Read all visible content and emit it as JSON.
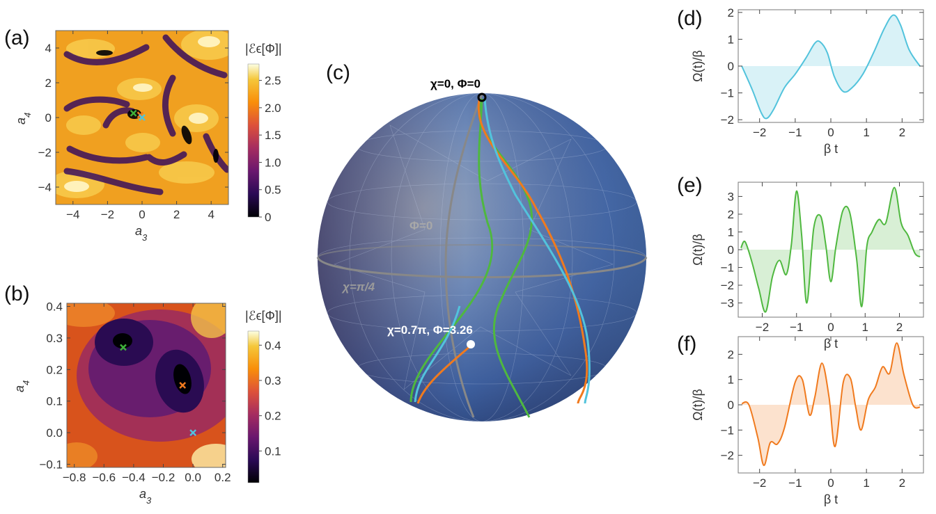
{
  "panels": {
    "a": "(a)",
    "b": "(b)",
    "c": "(c)",
    "d": "(d)",
    "e": "(e)",
    "f": "(f)"
  },
  "chart_data": [
    {
      "id": "a",
      "type": "heatmap",
      "xlabel": "a3",
      "ylabel": "a4",
      "xlim": [
        -5,
        5
      ],
      "ylim": [
        -5,
        5
      ],
      "xticks": [
        -4,
        -2,
        0,
        2,
        4
      ],
      "yticks": [
        -4,
        -2,
        0,
        2,
        4
      ],
      "colorbar": {
        "label": "|ℰϵ[Φ]|",
        "range": [
          0,
          2.8
        ],
        "ticks": [
          0,
          0.5,
          1.0,
          1.5,
          2.0,
          2.5
        ],
        "tick_labels": [
          "0",
          "0.5",
          "1.0",
          "1.5",
          "2.0",
          "2.5"
        ]
      },
      "markers": [
        {
          "x": -0.5,
          "y": 0.25,
          "color": "#3fb23a"
        },
        {
          "x": -0.1,
          "y": 0.15,
          "color": "#f07a1e"
        },
        {
          "x": 0.0,
          "y": 0.0,
          "color": "#52c3dc"
        }
      ]
    },
    {
      "id": "b",
      "type": "heatmap",
      "xlabel": "a3",
      "ylabel": "a4",
      "xlim": [
        -0.85,
        0.22
      ],
      "ylim": [
        -0.11,
        0.41
      ],
      "xticks": [
        -0.8,
        -0.6,
        -0.4,
        -0.2,
        0.0,
        0.2
      ],
      "xtick_labels": [
        "-0.8",
        "-0.6",
        "-0.4",
        "-0.2",
        "0.0",
        "0.2"
      ],
      "yticks": [
        -0.1,
        0.0,
        0.1,
        0.2,
        0.3,
        0.4
      ],
      "ytick_labels": [
        "-0.1",
        "0.0",
        "0.1",
        "0.2",
        "0.3",
        "0.4"
      ],
      "colorbar": {
        "label": "|ℰϵ[Φ]|",
        "range": [
          0.01,
          0.44
        ],
        "ticks": [
          0.1,
          0.2,
          0.3,
          0.4
        ],
        "tick_labels": [
          "0.1",
          "0.2",
          "0.3",
          "0.4"
        ]
      },
      "markers": [
        {
          "x": -0.47,
          "y": 0.27,
          "color": "#3fb23a"
        },
        {
          "x": -0.07,
          "y": 0.15,
          "color": "#f07a1e"
        },
        {
          "x": 0.0,
          "y": 0.0,
          "color": "#52c3dc"
        }
      ]
    },
    {
      "id": "c",
      "type": "other",
      "annotations": {
        "north": "χ=0, Φ=0",
        "meridian": "Φ=0",
        "equator": "χ=π/4",
        "target": "χ=0.7π, Φ=3.26"
      },
      "trajectory_colors": [
        "#3fb23a",
        "#f07a1e",
        "#52c3dc"
      ]
    },
    {
      "id": "d",
      "type": "area",
      "xlabel": "β t",
      "ylabel": "Ω(t)/β",
      "xlim": [
        -2.6,
        2.6
      ],
      "ylim": [
        -2.1,
        2.1
      ],
      "xticks": [
        -2,
        -1,
        0,
        1,
        2
      ],
      "yticks": [
        -2,
        -1,
        0,
        1,
        2
      ],
      "color": "#52c3dc",
      "x": [
        -2.5,
        -2.2,
        -1.95,
        -1.8,
        -1.6,
        -1.3,
        -1.0,
        -0.7,
        -0.45,
        -0.3,
        -0.1,
        0.1,
        0.35,
        0.6,
        0.9,
        1.2,
        1.5,
        1.75,
        1.95,
        2.2,
        2.5
      ],
      "y": [
        0.0,
        -0.9,
        -1.75,
        -1.95,
        -1.6,
        -0.8,
        -0.3,
        0.3,
        0.85,
        0.9,
        0.5,
        -0.4,
        -0.95,
        -0.8,
        -0.3,
        0.5,
        1.4,
        1.9,
        1.55,
        0.6,
        0.0
      ]
    },
    {
      "id": "e",
      "type": "area",
      "xlabel": "β t",
      "ylabel": "Ω(t)/β",
      "xlim": [
        -2.7,
        2.7
      ],
      "ylim": [
        -3.8,
        3.8
      ],
      "xticks": [
        -2,
        -1,
        0,
        1,
        2
      ],
      "yticks": [
        -3,
        -2,
        -1,
        0,
        1,
        2,
        3
      ],
      "color": "#4fb83f",
      "x": [
        -2.62,
        -2.5,
        -2.3,
        -2.1,
        -1.9,
        -1.7,
        -1.5,
        -1.3,
        -1.15,
        -1.0,
        -0.85,
        -0.7,
        -0.5,
        -0.3,
        -0.15,
        0.0,
        0.15,
        0.35,
        0.55,
        0.75,
        0.9,
        1.05,
        1.2,
        1.4,
        1.6,
        1.85,
        2.05,
        2.25,
        2.45,
        2.6
      ],
      "y": [
        0.1,
        0.45,
        -0.7,
        -2.2,
        -3.5,
        -1.5,
        -0.6,
        -1.4,
        0.3,
        3.3,
        0.8,
        -3.0,
        1.2,
        1.9,
        0.3,
        -1.8,
        0.2,
        2.2,
        2.1,
        -0.5,
        -3.2,
        0.2,
        1.0,
        1.7,
        1.5,
        3.5,
        1.5,
        0.8,
        -0.2,
        -0.4
      ]
    },
    {
      "id": "f",
      "type": "area",
      "xlabel": "β t",
      "ylabel": "Ω(t)/β",
      "xlim": [
        -2.6,
        2.6
      ],
      "ylim": [
        -2.7,
        2.7
      ],
      "xticks": [
        -2,
        -1,
        0,
        1,
        2
      ],
      "yticks": [
        -2,
        -1,
        0,
        1,
        2
      ],
      "color": "#f07a1e",
      "x": [
        -2.5,
        -2.3,
        -2.05,
        -1.88,
        -1.7,
        -1.5,
        -1.3,
        -1.0,
        -0.8,
        -0.6,
        -0.45,
        -0.25,
        -0.05,
        0.12,
        0.35,
        0.55,
        0.7,
        0.85,
        1.05,
        1.25,
        1.45,
        1.65,
        1.85,
        2.05,
        2.3,
        2.5
      ],
      "y": [
        0.05,
        0.0,
        -1.3,
        -2.4,
        -1.5,
        -1.55,
        -0.9,
        0.9,
        1.0,
        -0.4,
        0.3,
        1.65,
        0.3,
        -1.65,
        0.9,
        1.05,
        -0.1,
        -1.0,
        0.2,
        0.7,
        1.5,
        1.25,
        2.45,
        1.2,
        0.0,
        -0.1
      ]
    }
  ]
}
